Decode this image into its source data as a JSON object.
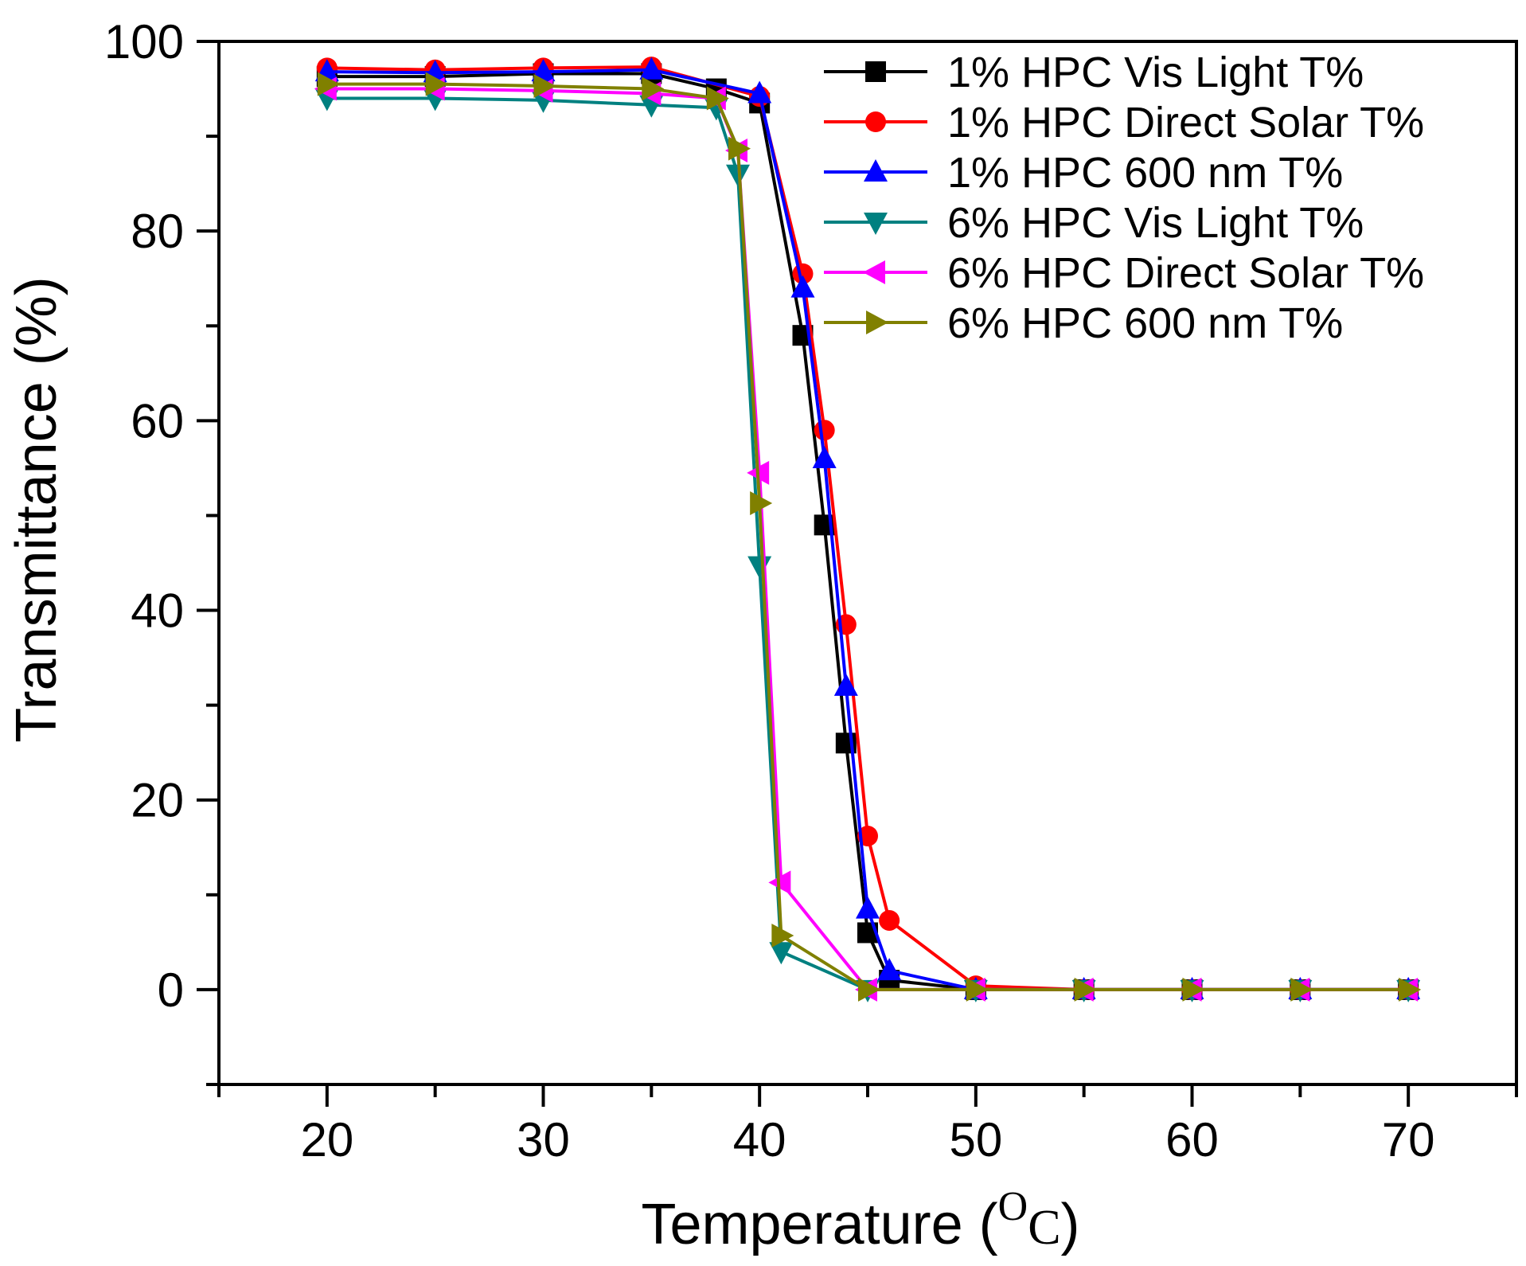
{
  "chart_data": {
    "type": "line",
    "xlabel": "Temperature (",
    "xlabel_unit_sup": "O",
    "xlabel_unit": "C",
    "xlabel_close": ")",
    "ylabel": "Transmittance (%)",
    "xlim": [
      15,
      75
    ],
    "ylim": [
      -10,
      100
    ],
    "xticks": [
      20,
      30,
      40,
      50,
      60,
      70
    ],
    "yticks": [
      0,
      20,
      40,
      60,
      80,
      100
    ],
    "legend_position": "top-right",
    "series": [
      {
        "name": "1% HPC Vis Light T%",
        "color": "#000000",
        "marker": "square",
        "x": [
          20,
          25,
          30,
          35,
          38,
          40,
          42,
          43,
          44,
          45,
          46,
          50,
          55,
          60,
          65,
          70
        ],
        "y": [
          96.3,
          96.3,
          96.6,
          96.6,
          95,
          93.5,
          69,
          49,
          26,
          6,
          1,
          0,
          0,
          0,
          0,
          0
        ]
      },
      {
        "name": "1% HPC Direct Solar T%",
        "color": "#ff0000",
        "marker": "circle",
        "x": [
          20,
          25,
          30,
          35,
          40,
          42,
          43,
          44,
          45,
          46,
          50,
          55,
          60,
          65,
          70
        ],
        "y": [
          97.2,
          97,
          97.2,
          97.3,
          94.2,
          75.5,
          59,
          38.5,
          16.2,
          7.3,
          0.4,
          0,
          0,
          0,
          0
        ]
      },
      {
        "name": "1% HPC 600 nm T%",
        "color": "#0000ff",
        "marker": "triangle-up",
        "x": [
          20,
          25,
          30,
          35,
          40,
          42,
          43,
          44,
          45,
          46,
          50,
          55,
          60,
          65,
          70
        ],
        "y": [
          96.8,
          96.7,
          96.8,
          97,
          94.5,
          74,
          56,
          32,
          8.5,
          2,
          0,
          0,
          0,
          0,
          0
        ]
      },
      {
        "name": "6% HPC Vis Light T%",
        "color": "#008080",
        "marker": "triangle-down",
        "x": [
          20,
          25,
          30,
          35,
          38,
          39,
          40,
          41,
          45,
          50,
          55,
          60,
          65,
          70
        ],
        "y": [
          94,
          94,
          93.8,
          93.3,
          93,
          86,
          44.7,
          4,
          0,
          0,
          0,
          0,
          0,
          0
        ]
      },
      {
        "name": "6% HPC Direct Solar T%",
        "color": "#ff00ff",
        "marker": "triangle-left",
        "x": [
          20,
          25,
          30,
          35,
          38,
          39,
          40,
          41,
          45,
          50,
          55,
          60,
          65,
          70
        ],
        "y": [
          95,
          95,
          94.8,
          94.5,
          94,
          88.5,
          54.5,
          11.3,
          0,
          0,
          0,
          0,
          0,
          0
        ]
      },
      {
        "name": "6% HPC 600 nm T%",
        "color": "#808000",
        "marker": "triangle-right",
        "x": [
          20,
          25,
          30,
          35,
          38,
          39,
          40,
          41,
          45,
          50,
          55,
          60,
          65,
          70
        ],
        "y": [
          95.5,
          95.5,
          95.3,
          95,
          94,
          88.7,
          51.3,
          5.7,
          0,
          0,
          0,
          0,
          0,
          0
        ]
      }
    ]
  }
}
